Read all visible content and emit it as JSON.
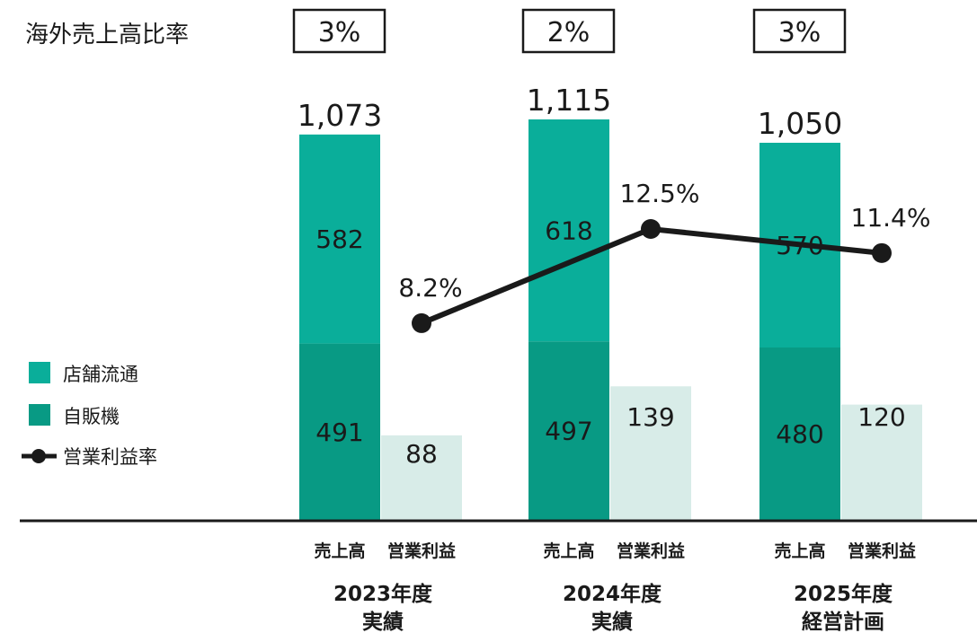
{
  "chart_data": {
    "type": "bar",
    "overseas_ratio_label": "海外売上高比率",
    "categories": [
      "2023年度",
      "2024年度",
      "2025年度"
    ],
    "category_sublabels": [
      "実績",
      "実績",
      "経営計画"
    ],
    "overseas_ratios": [
      "3%",
      "2%",
      "3%"
    ],
    "bar_sublabels": {
      "sales": "売上高",
      "profit": "営業利益"
    },
    "sales_totals": [
      "1,073",
      "1,115",
      "1,050"
    ],
    "series": [
      {
        "name": "店舗流通",
        "color": "#0aae9a",
        "values": [
          582,
          618,
          570
        ]
      },
      {
        "name": "自販機",
        "color": "#089a84",
        "values": [
          491,
          497,
          480
        ]
      },
      {
        "name": "営業利益",
        "color": "#d8ece8",
        "values": [
          88,
          139,
          120
        ]
      }
    ],
    "line": {
      "name": "営業利益率",
      "color": "#1a1a1a",
      "values": [
        8.2,
        12.5,
        11.4
      ],
      "labels": [
        "8.2%",
        "12.5%",
        "11.4%"
      ]
    },
    "legend": [
      "店舗流通",
      "自販機",
      "営業利益率"
    ]
  }
}
